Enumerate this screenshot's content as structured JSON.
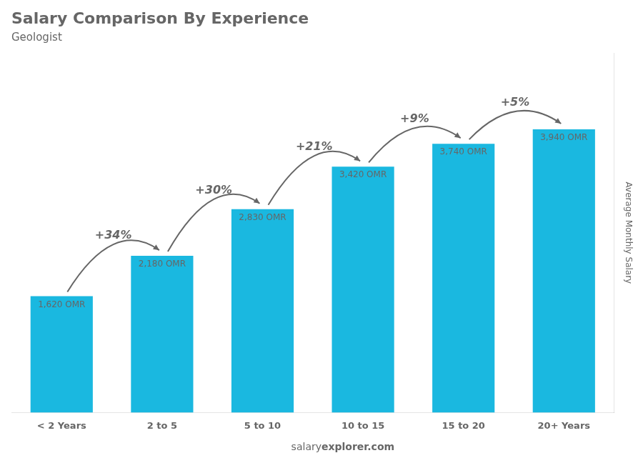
{
  "chart_data": {
    "type": "bar",
    "title": "Salary Comparison By Experience",
    "subtitle": "Geologist",
    "ylabel": "Average Monthly Salary",
    "categories": [
      "< 2 Years",
      "2 to 5",
      "5 to 10",
      "10 to 15",
      "15 to 20",
      "20+ Years"
    ],
    "values": [
      1620,
      2180,
      2830,
      3420,
      3740,
      3940
    ],
    "value_labels": [
      "1,620 OMR",
      "2,180 OMR",
      "2,830 OMR",
      "3,420 OMR",
      "3,740 OMR",
      "3,940 OMR"
    ],
    "data_labels": true,
    "annotations": [
      "+34%",
      "+30%",
      "+21%",
      "+9%",
      "+5%"
    ],
    "footer": [
      "salary",
      "explorer.com"
    ],
    "color": "#1ab8e0",
    "ylim": [
      0,
      5000
    ],
    "grid": false,
    "tick_labels": "x"
  }
}
